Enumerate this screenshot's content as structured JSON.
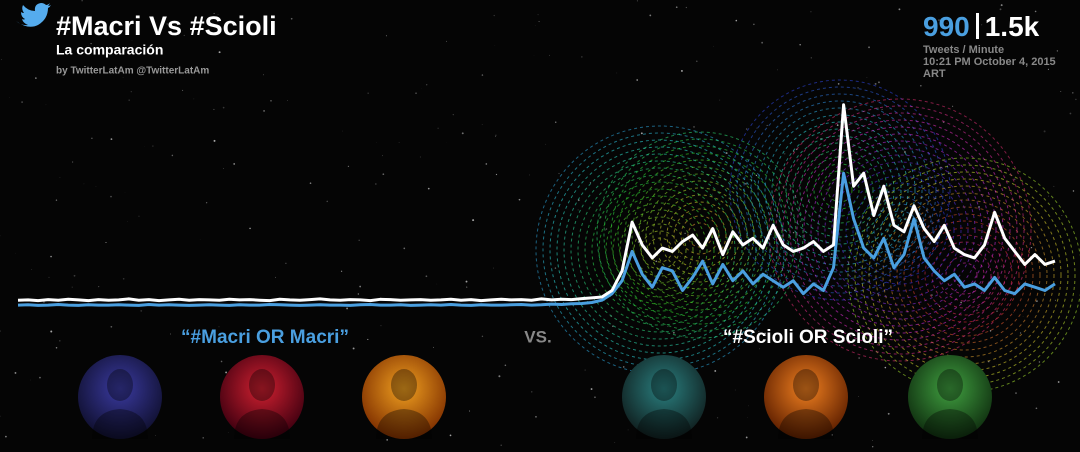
{
  "chart_data": {
    "type": "line",
    "title": "#Macri Vs #Scioli",
    "subtitle": "La comparación",
    "byline": "by TwitterLatAm @TwitterLatAm",
    "counter": {
      "values": [
        "990",
        "1.5k"
      ],
      "unit": "Tweets / Minute",
      "time": "10:21 PM October 4, 2015 ART"
    },
    "separator": "VS.",
    "ylim": [
      0,
      7000
    ],
    "series": [
      {
        "name": "“#Macri OR Macri”",
        "color": "#4a9fe0",
        "values": [
          150,
          160,
          140,
          150,
          170,
          150,
          140,
          160,
          150,
          150,
          160,
          150,
          140,
          170,
          150,
          160,
          150,
          140,
          150,
          160,
          150,
          140,
          160,
          150,
          150,
          170,
          160,
          150,
          140,
          150,
          160,
          150,
          150,
          140,
          160,
          170,
          150,
          150,
          160,
          140,
          150,
          160,
          150,
          170,
          150,
          140,
          160,
          150,
          150,
          160,
          170,
          150,
          160,
          180,
          170,
          190,
          200,
          230,
          300,
          500,
          900,
          1800,
          1100,
          700,
          1300,
          1200,
          600,
          1000,
          1500,
          800,
          1400,
          900,
          1200,
          800,
          1100,
          900,
          700,
          900,
          500,
          800,
          600,
          1300,
          4200,
          2800,
          1900,
          1600,
          2200,
          1300,
          1700,
          2800,
          1600,
          1200,
          900,
          1100,
          700,
          800,
          600,
          1000,
          600,
          500,
          800,
          700,
          600,
          800
        ]
      },
      {
        "name": "“#Scioli OR Scioli”",
        "color": "#ffffff",
        "values": [
          300,
          310,
          290,
          320,
          300,
          330,
          310,
          290,
          320,
          300,
          310,
          340,
          300,
          320,
          290,
          310,
          330,
          300,
          320,
          310,
          300,
          330,
          310,
          320,
          300,
          290,
          330,
          310,
          300,
          320,
          340,
          310,
          300,
          320,
          310,
          290,
          330,
          320,
          300,
          310,
          320,
          300,
          310,
          330,
          300,
          320,
          290,
          310,
          330,
          310,
          320,
          300,
          340,
          310,
          330,
          320,
          350,
          370,
          400,
          600,
          1200,
          2700,
          2000,
          1600,
          1900,
          1800,
          2100,
          2300,
          1900,
          2500,
          1700,
          2400,
          2000,
          2200,
          1900,
          2600,
          2000,
          1800,
          1900,
          2100,
          1800,
          2000,
          6300,
          3800,
          4200,
          2900,
          3800,
          2600,
          2400,
          3200,
          2500,
          2100,
          2600,
          1900,
          1700,
          1600,
          2000,
          3000,
          2200,
          1800,
          1400,
          1700,
          1400,
          1500
        ]
      }
    ]
  }
}
